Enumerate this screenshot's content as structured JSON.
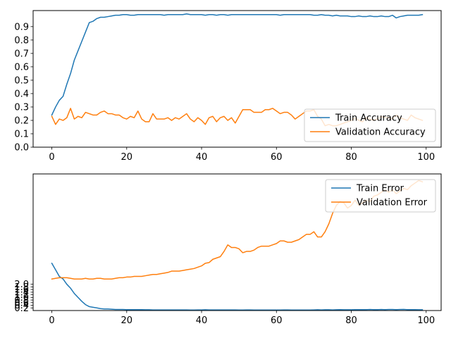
{
  "chart_data": [
    {
      "type": "line",
      "title": "",
      "xlabel": "",
      "ylabel": "",
      "xlim": [
        -5,
        104
      ],
      "ylim": [
        0,
        1.02
      ],
      "xticks": [
        0,
        20,
        40,
        60,
        80,
        100
      ],
      "yticks": [
        0.0,
        0.1,
        0.2,
        0.3,
        0.4,
        0.5,
        0.6,
        0.7,
        0.8,
        0.9
      ],
      "ytick_labels": [
        "0.0",
        "0.1",
        "0.2",
        "0.3",
        "0.4",
        "0.5",
        "0.6",
        "0.7",
        "0.8",
        "0.9"
      ],
      "legend_position": "lower-right",
      "grid": false,
      "series": [
        {
          "name": "Train Accuracy",
          "color": "#1f77b4",
          "values": [
            0.24,
            0.3,
            0.35,
            0.38,
            0.47,
            0.55,
            0.65,
            0.72,
            0.79,
            0.86,
            0.93,
            0.94,
            0.96,
            0.97,
            0.97,
            0.975,
            0.98,
            0.985,
            0.985,
            0.99,
            0.99,
            0.985,
            0.985,
            0.99,
            0.99,
            0.99,
            0.99,
            0.99,
            0.99,
            0.99,
            0.985,
            0.99,
            0.99,
            0.99,
            0.99,
            0.99,
            0.995,
            0.99,
            0.99,
            0.99,
            0.99,
            0.985,
            0.99,
            0.99,
            0.985,
            0.99,
            0.99,
            0.985,
            0.99,
            0.99,
            0.99,
            0.99,
            0.99,
            0.99,
            0.99,
            0.99,
            0.99,
            0.99,
            0.99,
            0.99,
            0.99,
            0.985,
            0.99,
            0.99,
            0.99,
            0.99,
            0.99,
            0.99,
            0.99,
            0.99,
            0.985,
            0.985,
            0.99,
            0.985,
            0.985,
            0.98,
            0.985,
            0.98,
            0.98,
            0.98,
            0.975,
            0.975,
            0.98,
            0.975,
            0.975,
            0.98,
            0.975,
            0.975,
            0.98,
            0.975,
            0.975,
            0.985,
            0.965,
            0.975,
            0.98,
            0.985,
            0.985,
            0.985,
            0.985,
            0.99
          ]
        },
        {
          "name": "Validation Accuracy",
          "color": "#ff7f0e",
          "values": [
            0.23,
            0.17,
            0.21,
            0.2,
            0.22,
            0.29,
            0.21,
            0.23,
            0.22,
            0.26,
            0.25,
            0.24,
            0.24,
            0.26,
            0.27,
            0.25,
            0.25,
            0.24,
            0.24,
            0.22,
            0.21,
            0.23,
            0.22,
            0.27,
            0.21,
            0.19,
            0.19,
            0.25,
            0.21,
            0.21,
            0.21,
            0.22,
            0.2,
            0.22,
            0.21,
            0.23,
            0.25,
            0.21,
            0.19,
            0.22,
            0.2,
            0.17,
            0.22,
            0.23,
            0.19,
            0.22,
            0.23,
            0.2,
            0.22,
            0.18,
            0.23,
            0.28,
            0.28,
            0.28,
            0.26,
            0.26,
            0.26,
            0.28,
            0.28,
            0.29,
            0.27,
            0.25,
            0.26,
            0.26,
            0.24,
            0.21,
            0.23,
            0.25,
            0.27,
            0.27,
            0.28,
            0.23,
            0.21,
            0.16,
            0.17,
            0.16,
            0.16,
            0.17,
            0.18,
            0.19,
            0.2,
            0.22,
            0.2,
            0.19,
            0.22,
            0.21,
            0.2,
            0.21,
            0.23,
            0.22,
            0.22,
            0.21,
            0.24,
            0.22,
            0.21,
            0.2,
            0.24,
            0.22,
            0.21,
            0.2
          ]
        }
      ]
    },
    {
      "type": "line",
      "title": "",
      "xlabel": "",
      "ylabel": "",
      "xlim": [
        -5,
        104
      ],
      "ylim": [
        0,
        10.4
      ],
      "xticks": [
        0,
        20,
        40,
        60,
        80,
        100
      ],
      "yticks": [
        0.2,
        0.4,
        0.6,
        0.8,
        1.0,
        1.2,
        1.4,
        1.6,
        1.8,
        2.0
      ],
      "ytick_labels": [
        "0.2",
        "0.4",
        "0.6",
        "0.8",
        "1.0",
        "1.2",
        "1.4",
        "1.6",
        "1.8",
        "2.0"
      ],
      "legend_position": "upper-right",
      "grid": false,
      "series": [
        {
          "name": "Train Error",
          "color": "#1f77b4",
          "values": [
            3.6,
            3.1,
            2.6,
            2.4,
            2.0,
            1.7,
            1.3,
            1.0,
            0.7,
            0.45,
            0.3,
            0.25,
            0.2,
            0.15,
            0.12,
            0.12,
            0.1,
            0.08,
            0.08,
            0.08,
            0.07,
            0.07,
            0.07,
            0.07,
            0.07,
            0.06,
            0.06,
            0.05,
            0.05,
            0.05,
            0.05,
            0.05,
            0.05,
            0.05,
            0.05,
            0.05,
            0.05,
            0.04,
            0.04,
            0.05,
            0.05,
            0.06,
            0.05,
            0.05,
            0.05,
            0.05,
            0.05,
            0.05,
            0.05,
            0.05,
            0.04,
            0.04,
            0.05,
            0.05,
            0.04,
            0.04,
            0.04,
            0.04,
            0.04,
            0.04,
            0.04,
            0.04,
            0.05,
            0.05,
            0.04,
            0.04,
            0.04,
            0.04,
            0.04,
            0.04,
            0.05,
            0.06,
            0.05,
            0.06,
            0.06,
            0.05,
            0.06,
            0.07,
            0.06,
            0.06,
            0.06,
            0.07,
            0.07,
            0.07,
            0.07,
            0.08,
            0.07,
            0.07,
            0.08,
            0.07,
            0.08,
            0.08,
            0.07,
            0.08,
            0.09,
            0.07,
            0.07,
            0.07,
            0.06,
            0.06
          ]
        },
        {
          "name": "Validation Error",
          "color": "#ff7f0e",
          "values": [
            2.4,
            2.45,
            2.5,
            2.5,
            2.5,
            2.45,
            2.4,
            2.4,
            2.4,
            2.45,
            2.4,
            2.4,
            2.45,
            2.45,
            2.4,
            2.4,
            2.4,
            2.45,
            2.5,
            2.5,
            2.55,
            2.55,
            2.6,
            2.6,
            2.6,
            2.65,
            2.7,
            2.75,
            2.75,
            2.8,
            2.85,
            2.9,
            3.0,
            3.0,
            3.0,
            3.05,
            3.1,
            3.15,
            3.2,
            3.3,
            3.4,
            3.6,
            3.65,
            3.9,
            4.0,
            4.1,
            4.5,
            5.0,
            4.8,
            4.8,
            4.7,
            4.4,
            4.5,
            4.5,
            4.6,
            4.8,
            4.9,
            4.9,
            4.9,
            5.0,
            5.1,
            5.3,
            5.3,
            5.2,
            5.2,
            5.3,
            5.4,
            5.6,
            5.8,
            5.8,
            6.0,
            5.6,
            5.6,
            6.0,
            6.6,
            7.4,
            8.0,
            8.3,
            8.2,
            7.8,
            8.0,
            8.4,
            8.0,
            8.2,
            8.4,
            8.3,
            8.7,
            8.8,
            9.0,
            9.2,
            9.0,
            9.2,
            8.9,
            9.1,
            9.3,
            9.2,
            9.5,
            9.7,
            9.9,
            9.8
          ]
        }
      ]
    }
  ]
}
